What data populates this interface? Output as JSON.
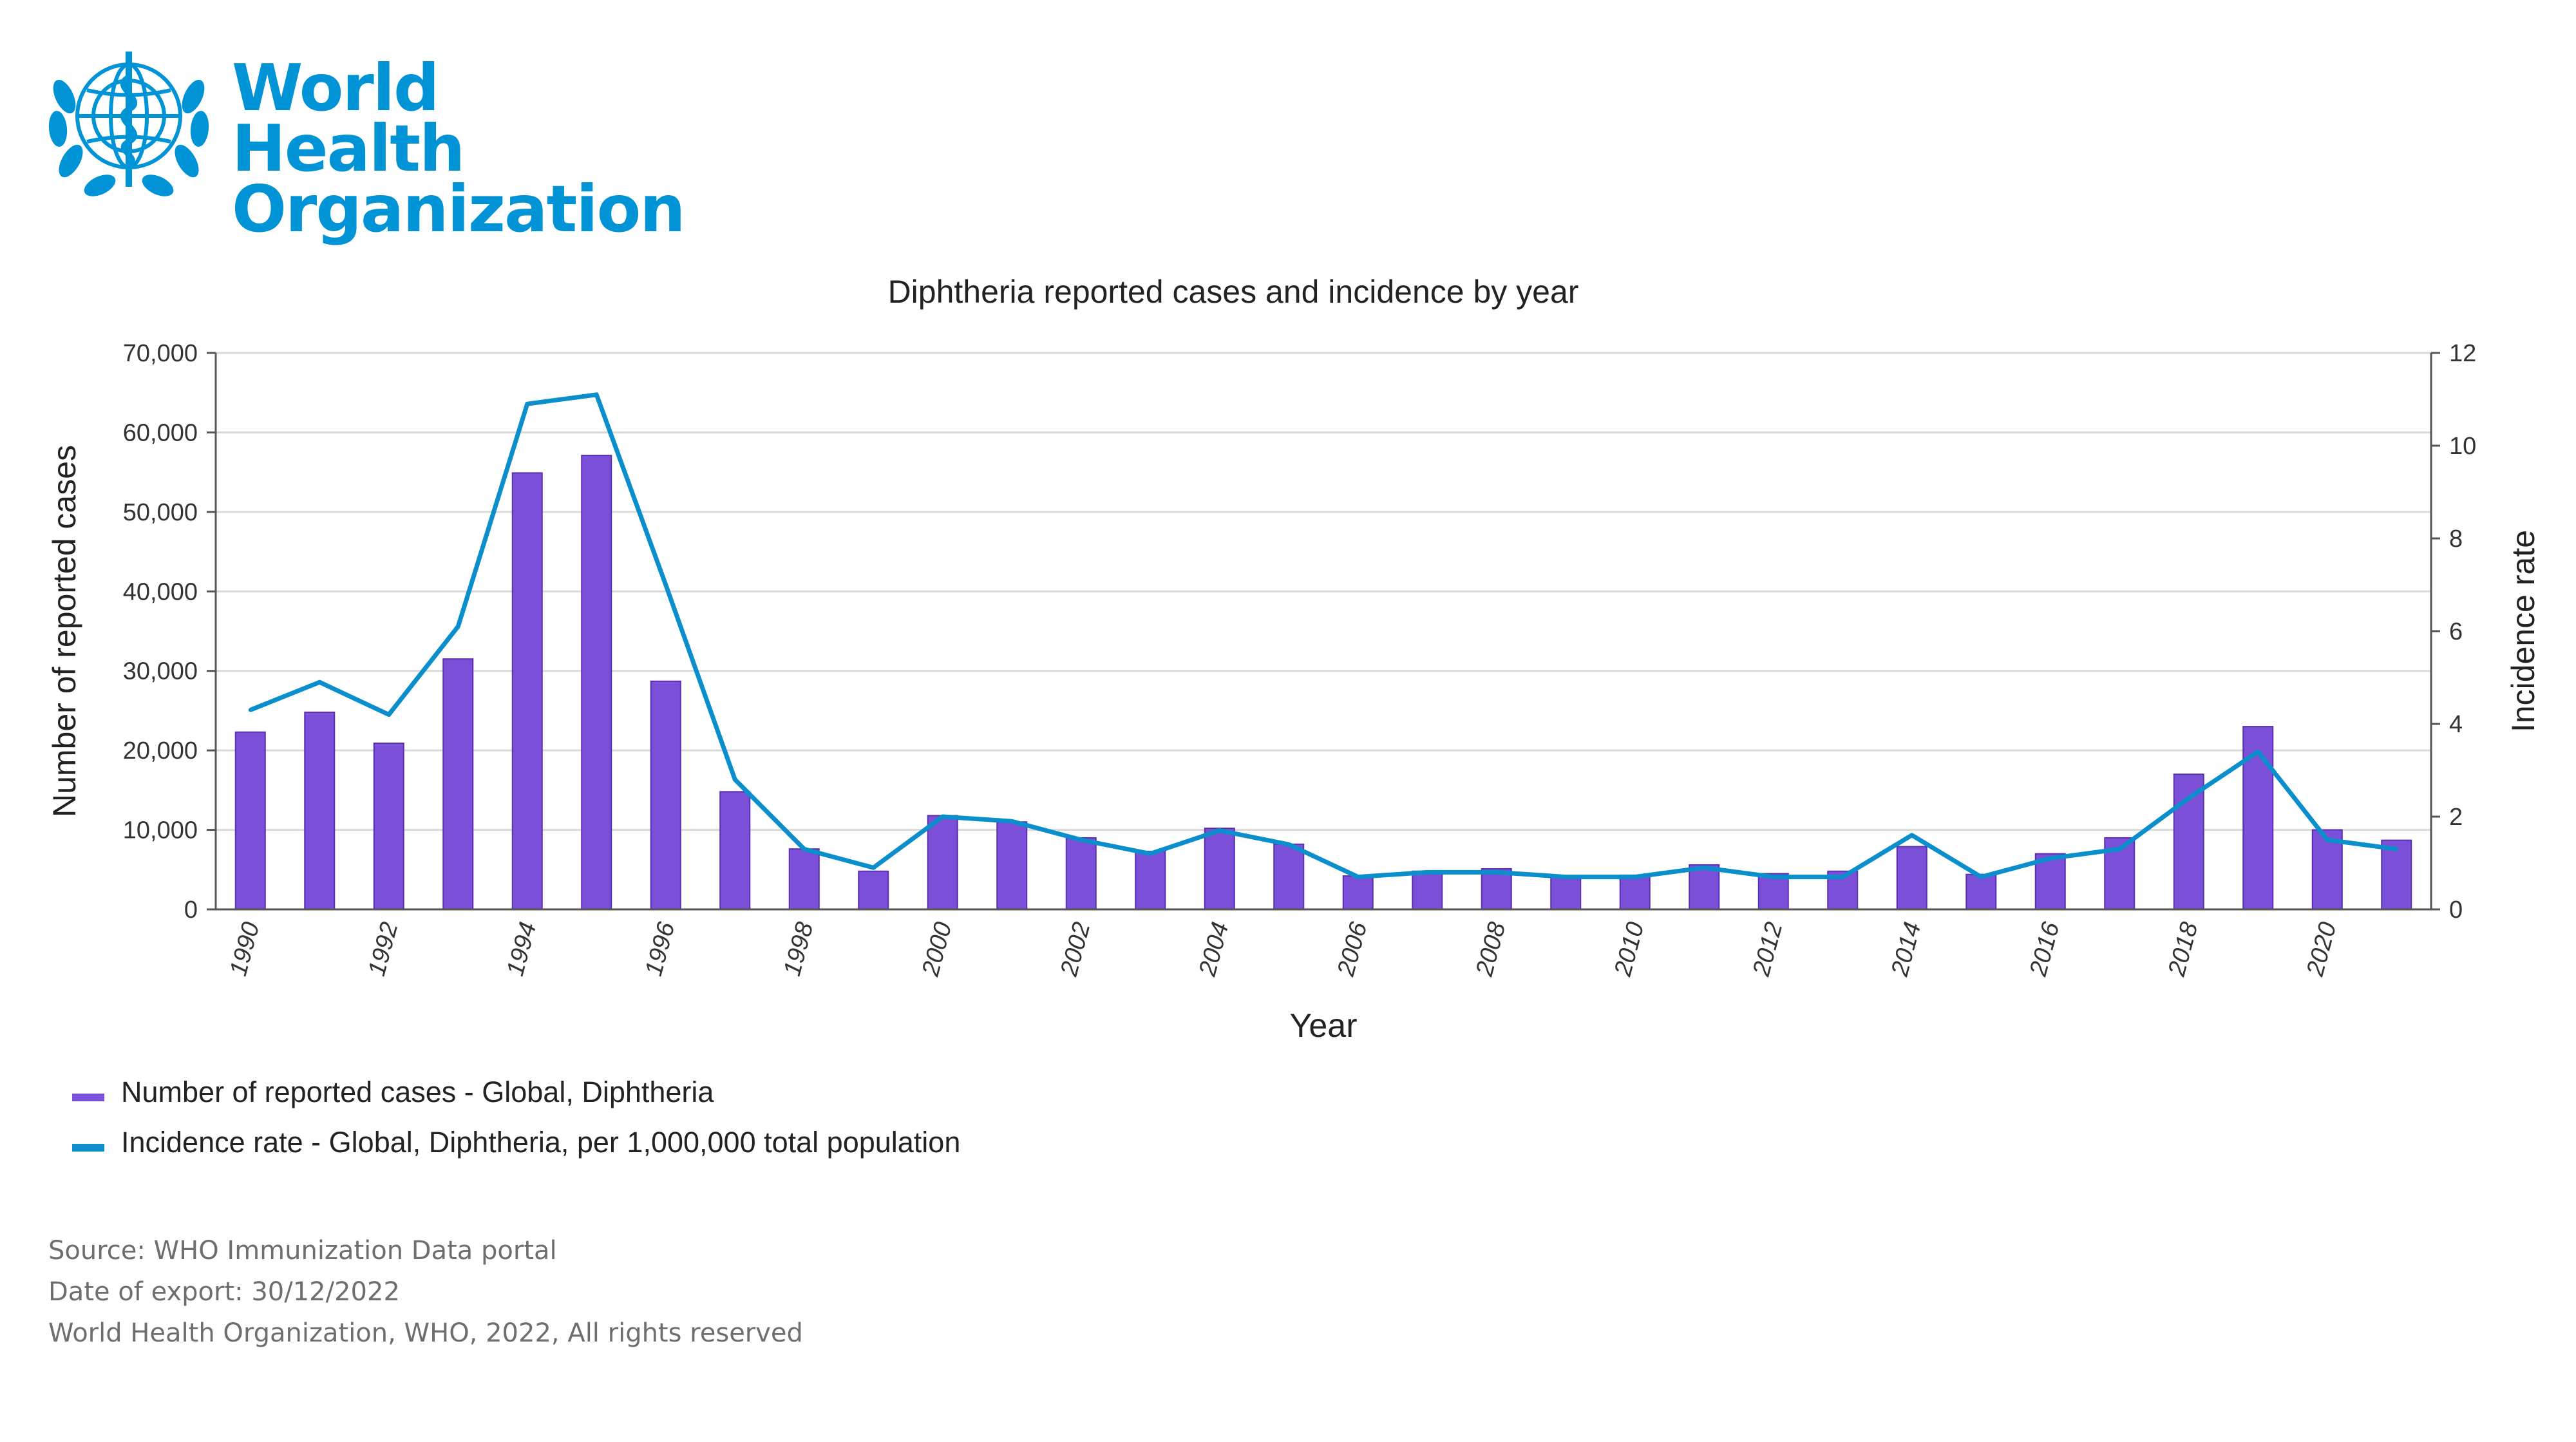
{
  "organization": {
    "name_line1": "World Health",
    "name_line2": "Organization",
    "brand_color": "#0093d5",
    "logo_icon": "who-emblem-icon"
  },
  "chart_data": {
    "type": "bar",
    "title": "Diphtheria reported cases and incidence by year",
    "xlabel": "Year",
    "ylabel": "Number of reported cases",
    "y2label": "Incidence rate",
    "ylim": [
      0,
      70000
    ],
    "y2lim": [
      0,
      12
    ],
    "yticks": [
      "0",
      "10,000",
      "20,000",
      "30,000",
      "40,000",
      "50,000",
      "60,000",
      "70,000"
    ],
    "y2ticks": [
      "0",
      "2",
      "4",
      "6",
      "8",
      "10",
      "12"
    ],
    "xtick_labels": [
      "1990",
      "1992",
      "1994",
      "1996",
      "1998",
      "2000",
      "2002",
      "2004",
      "2006",
      "2008",
      "2010",
      "2012",
      "2014",
      "2016",
      "2018",
      "2020"
    ],
    "categories": [
      "1990",
      "1991",
      "1992",
      "1993",
      "1994",
      "1995",
      "1996",
      "1997",
      "1998",
      "1999",
      "2000",
      "2001",
      "2002",
      "2003",
      "2004",
      "2005",
      "2006",
      "2007",
      "2008",
      "2009",
      "2010",
      "2011",
      "2012",
      "2013",
      "2014",
      "2015",
      "2016",
      "2017",
      "2018",
      "2019",
      "2020",
      "2021"
    ],
    "grid": true,
    "legend_position": "bottom-left",
    "series": [
      {
        "name": "Number of reported cases - Global, Diphtheria",
        "type": "bar",
        "axis": "left",
        "color": "#7b4fd8",
        "values": [
          22300,
          24800,
          20900,
          31500,
          54900,
          57100,
          28700,
          14800,
          7600,
          4800,
          11800,
          11000,
          9000,
          7300,
          10200,
          8200,
          4200,
          4800,
          5100,
          4100,
          4300,
          5600,
          4500,
          4800,
          7900,
          4400,
          7000,
          9000,
          17000,
          23000,
          10000,
          8700
        ]
      },
      {
        "name": "Incidence rate - Global, Diphtheria, per 1,000,000 total population",
        "type": "line",
        "axis": "right",
        "color": "#0a8fcc",
        "values": [
          4.3,
          4.9,
          4.2,
          6.1,
          10.9,
          11.1,
          7.0,
          2.8,
          1.3,
          0.9,
          2.0,
          1.9,
          1.5,
          1.2,
          1.7,
          1.4,
          0.7,
          0.8,
          0.8,
          0.7,
          0.7,
          0.9,
          0.7,
          0.7,
          1.6,
          0.7,
          1.1,
          1.3,
          2.4,
          3.4,
          1.5,
          1.3
        ]
      }
    ]
  },
  "footer": {
    "source": "Source: WHO Immunization Data portal",
    "export_date": "Date of export: 30/12/2022",
    "rights": "World Health Organization, WHO, 2022, All rights reserved"
  }
}
